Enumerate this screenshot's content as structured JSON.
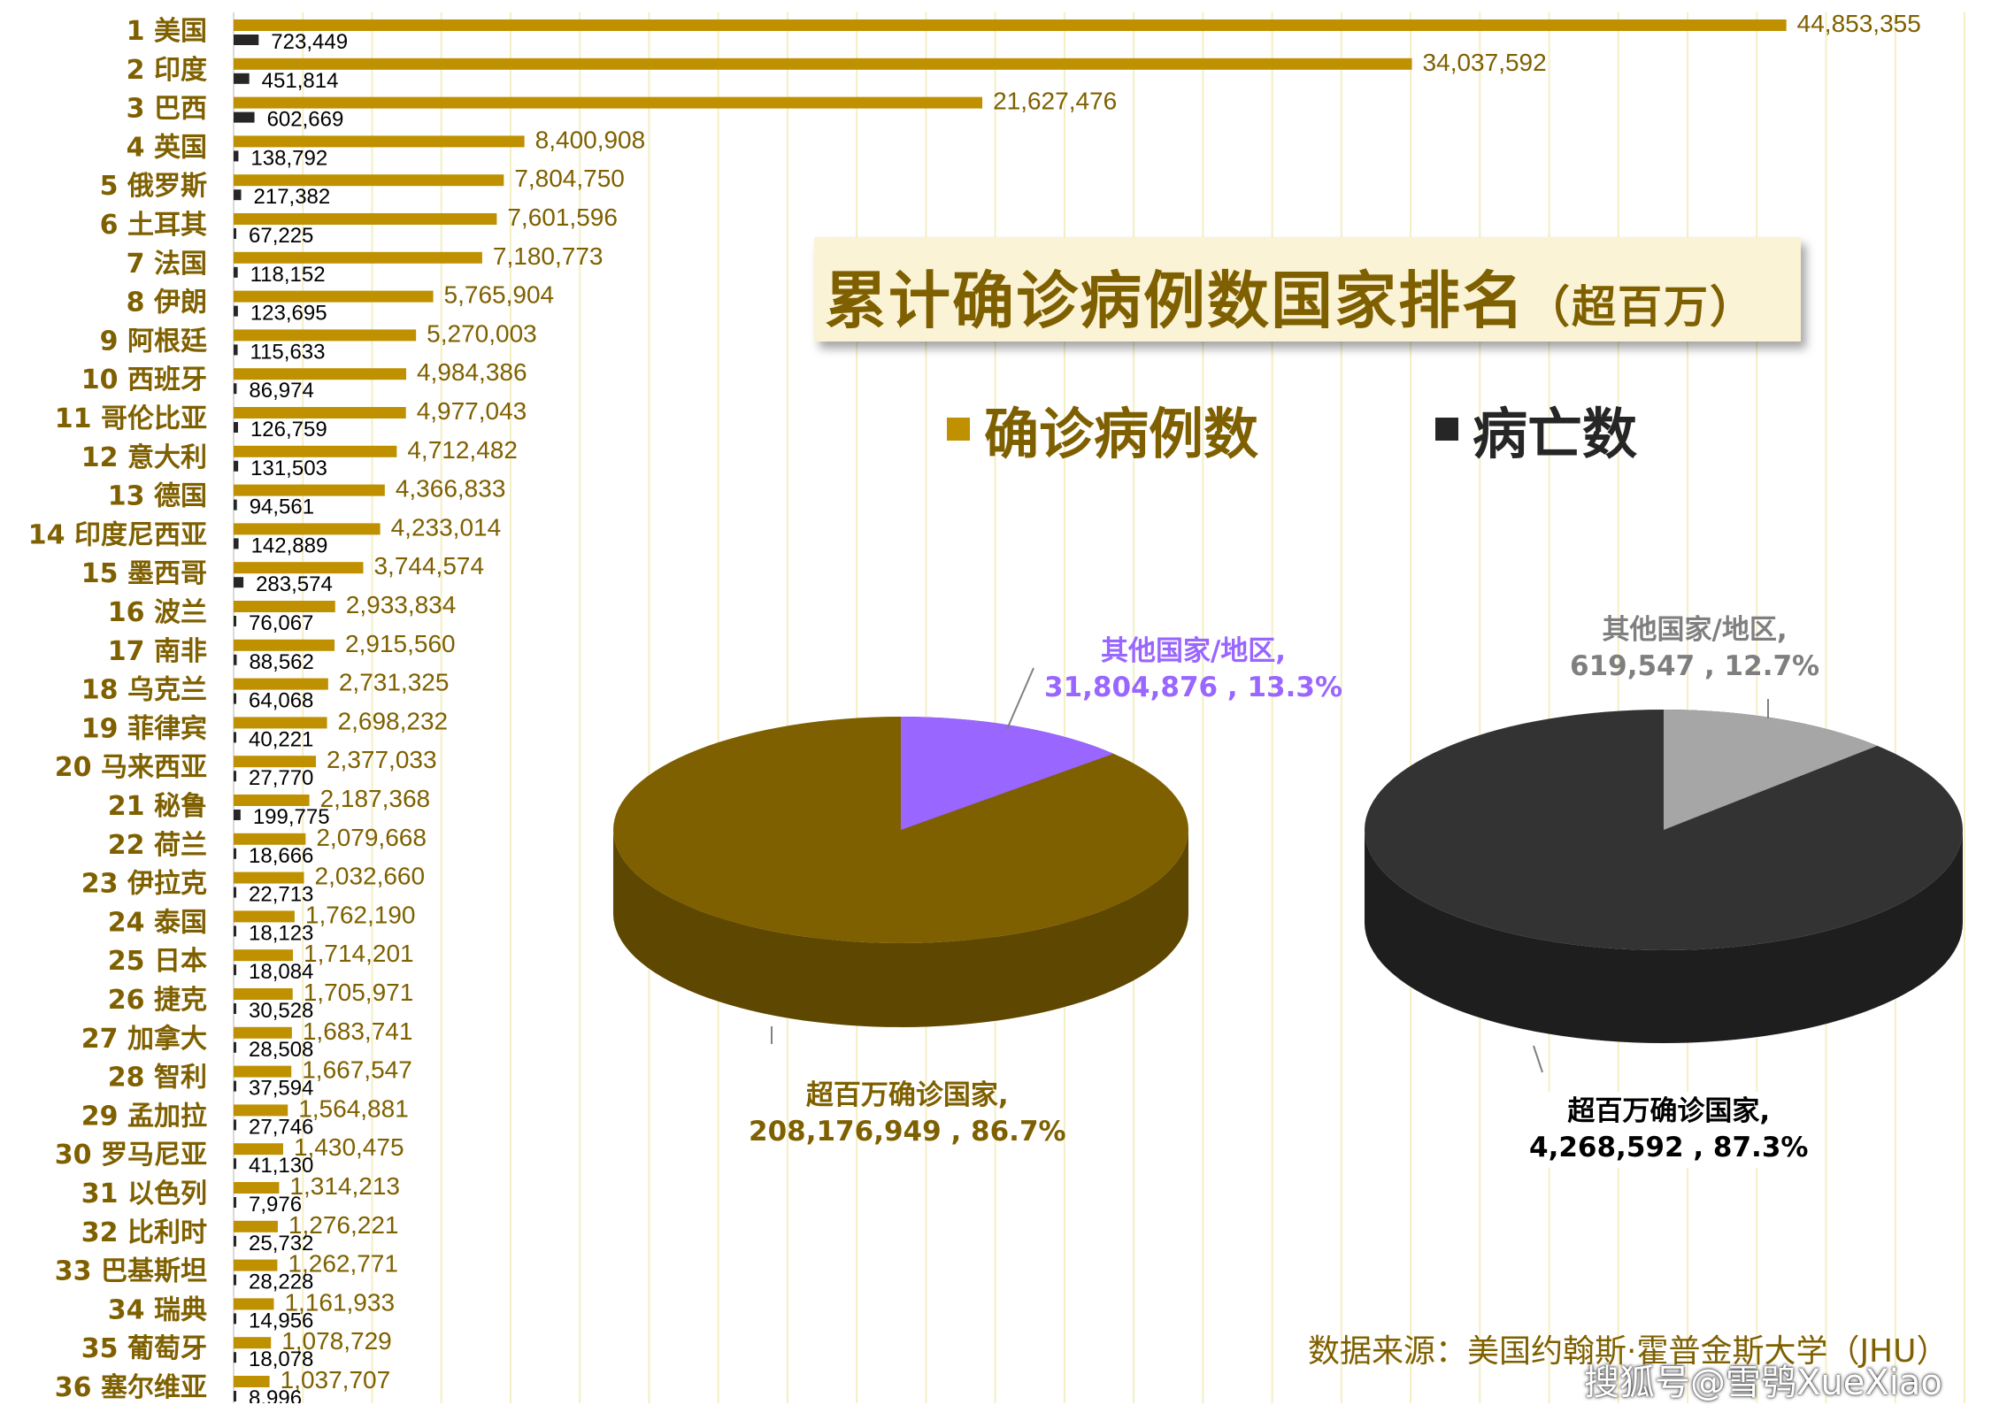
{
  "title": {
    "main": "累计确诊病例数国家排名",
    "sub": "（超百万）"
  },
  "source": "数据来源：美国约翰斯·霍普金斯大学（JHU）",
  "watermark": "搜狐号@雪鸮XueXiao",
  "colors": {
    "confirmed": "#bf9000",
    "deaths": "#262626",
    "label": "#7f6000",
    "grid": "#f3efc4",
    "pie_confirmed_main": "#7f6000",
    "pie_confirmed_other": "#9966ff",
    "pie_deaths_main": "#333333",
    "pie_deaths_other": "#a6a6a6"
  },
  "chart_data": [
    {
      "type": "bar",
      "orientation": "horizontal",
      "grid": true,
      "legend_placement": "top-right",
      "categories": [
        "1 美国",
        "2 印度",
        "3 巴西",
        "4 英国",
        "5 俄罗斯",
        "6 土耳其",
        "7 法国",
        "8 伊朗",
        "9 阿根廷",
        "10 西班牙",
        "11 哥伦比亚",
        "12 意大利",
        "13 德国",
        "14 印度尼西亚",
        "15 墨西哥",
        "16 波兰",
        "17 南非",
        "18 乌克兰",
        "19 菲律宾",
        "20 马来西亚",
        "21 秘鲁",
        "22 荷兰",
        "23 伊拉克",
        "24 泰国",
        "25 日本",
        "26 捷克",
        "27 加拿大",
        "28 智利",
        "29 孟加拉",
        "30 罗马尼亚",
        "31 以色列",
        "32 比利时",
        "33 巴基斯坦",
        "34 瑞典",
        "35 葡萄牙",
        "36 塞尔维亚"
      ],
      "series": [
        {
          "name": "确诊病例数",
          "values": [
            44853355,
            34037592,
            21627476,
            8400908,
            7804750,
            7601596,
            7180773,
            5765904,
            5270003,
            4984386,
            4977043,
            4712482,
            4366833,
            4233014,
            3744574,
            2933834,
            2915560,
            2731325,
            2698232,
            2377033,
            2187368,
            2079668,
            2032660,
            1762190,
            1714201,
            1705971,
            1683741,
            1667547,
            1564881,
            1430475,
            1314213,
            1276221,
            1262771,
            1161933,
            1078729,
            1037707
          ],
          "labels": [
            "44,853,355",
            "34,037,592",
            "21,627,476",
            "8,400,908",
            "7,804,750",
            "7,601,596",
            "7,180,773",
            "5,765,904",
            "5,270,003",
            "4,984,386",
            "4,977,043",
            "4,712,482",
            "4,366,833",
            "4,233,014",
            "3,744,574",
            "2,933,834",
            "2,915,560",
            "2,731,325",
            "2,698,232",
            "2,377,033",
            "2,187,368",
            "2,079,668",
            "2,032,660",
            "1,762,190",
            "1,714,201",
            "1,705,971",
            "1,683,741",
            "1,667,547",
            "1,564,881",
            "1,430,475",
            "1,314,213",
            "1,276,221",
            "1,262,771",
            "1,161,933",
            "1,078,729",
            "1,037,707"
          ]
        },
        {
          "name": "病亡数",
          "values": [
            723449,
            451814,
            602669,
            138792,
            217382,
            67225,
            118152,
            123695,
            115633,
            86974,
            126759,
            131503,
            94561,
            142889,
            283574,
            76067,
            88562,
            64068,
            40221,
            27770,
            199775,
            18666,
            22713,
            18123,
            18084,
            30528,
            28508,
            37594,
            27746,
            41130,
            7976,
            25732,
            28228,
            14956,
            18078,
            8996
          ],
          "labels": [
            "723,449",
            "451,814",
            "602,669",
            "138,792",
            "217,382",
            "67,225",
            "118,152",
            "123,695",
            "115,633",
            "86,974",
            "126,759",
            "131,503",
            "94,561",
            "142,889",
            "283,574",
            "76,067",
            "88,562",
            "64,068",
            "40,221",
            "27,770",
            "199,775",
            "18,666",
            "22,713",
            "18,123",
            "18,084",
            "30,528",
            "28,508",
            "37,594",
            "27,746",
            "41,130",
            "7,976",
            "25,732",
            "28,228",
            "14,956",
            "18,078",
            "8,996"
          ]
        }
      ],
      "xlim": [
        0,
        50000000
      ]
    },
    {
      "type": "pie",
      "style": "3d",
      "slices": [
        {
          "label": "超百万确诊国家,",
          "value": 208176949,
          "percent": 86.7,
          "value_label": "208,176,949 , 86.7%"
        },
        {
          "label": "其他国家/地区,",
          "value": 31804876,
          "percent": 13.3,
          "value_label": "31,804,876 , 13.3%"
        }
      ]
    },
    {
      "type": "pie",
      "style": "3d",
      "slices": [
        {
          "label": "超百万确诊国家,",
          "value": 4268592,
          "percent": 87.3,
          "value_label": "4,268,592 , 87.3%"
        },
        {
          "label": "其他国家/地区,",
          "value": 619547,
          "percent": 12.7,
          "value_label": "619,547 , 12.7%"
        }
      ]
    }
  ]
}
